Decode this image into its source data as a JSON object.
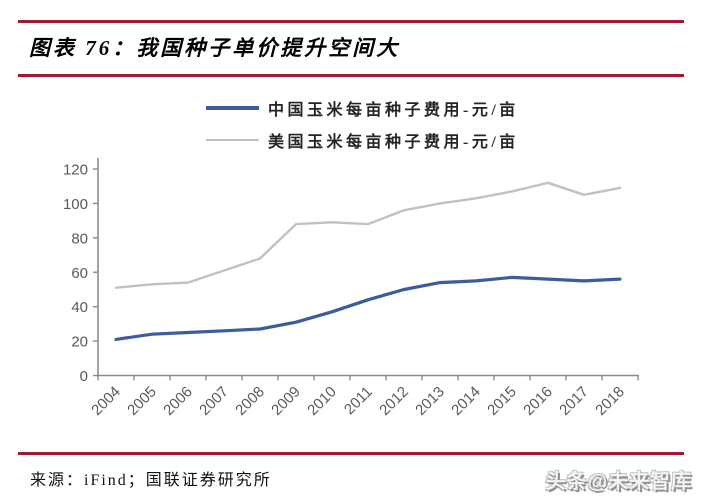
{
  "page": {
    "title": "图表 76：我国种子单价提升空间大",
    "source": "来源：iFind；国联证券研究所",
    "watermark": "头条@未来智库",
    "accent_color": "#A01931"
  },
  "chart_data": {
    "type": "line",
    "title": "",
    "xlabel": "",
    "ylabel": "",
    "categories": [
      "2004",
      "2005",
      "2006",
      "2007",
      "2008",
      "2009",
      "2010",
      "2011",
      "2012",
      "2013",
      "2014",
      "2015",
      "2016",
      "2017",
      "2018"
    ],
    "series": [
      {
        "name": "中国玉米每亩种子费用-元/亩",
        "color": "#3D5C9C",
        "stroke_width": 3.2,
        "values": [
          21,
          24,
          25,
          26,
          27,
          31,
          37,
          44,
          50,
          54,
          55,
          57,
          56,
          55,
          56
        ]
      },
      {
        "name": "美国玉米每亩种子费用-元/亩",
        "color": "#C1C1C1",
        "stroke_width": 2.4,
        "values": [
          51,
          53,
          54,
          61,
          68,
          88,
          89,
          88,
          96,
          100,
          103,
          107,
          112,
          105,
          109
        ]
      }
    ],
    "ylim": [
      0,
      120
    ],
    "ytick_step": 20,
    "yticks": [
      0,
      20,
      40,
      60,
      80,
      100,
      120
    ],
    "legend_position": "top-center",
    "grid": false,
    "axis_color": "#8C8C8C",
    "tick_label_color": "#595959"
  }
}
